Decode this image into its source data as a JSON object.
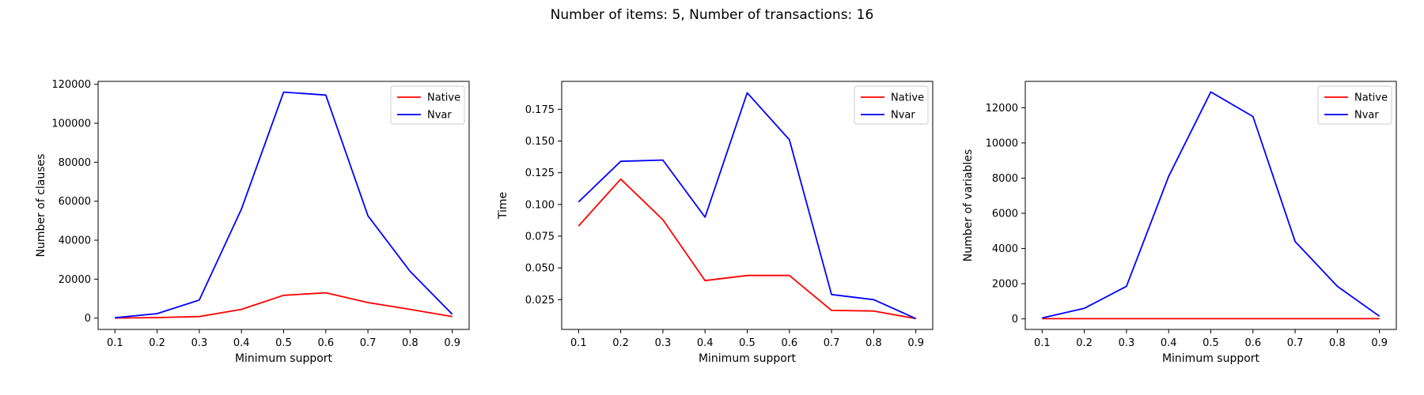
{
  "figure": {
    "suptitle": "Number of items: 5, Number of transactions: 16"
  },
  "chart_data": [
    {
      "type": "line",
      "xlabel": "Minimum support",
      "ylabel": "Number of clauses",
      "x": [
        0.1,
        0.2,
        0.3,
        0.4,
        0.5,
        0.6,
        0.7,
        0.8,
        0.9
      ],
      "xticks": [
        "0.1",
        "0.2",
        "0.3",
        "0.4",
        "0.5",
        "0.6",
        "0.7",
        "0.8",
        "0.9"
      ],
      "xlim": [
        0.06,
        0.94
      ],
      "ylim": [
        -5800,
        121500
      ],
      "yticks": [
        0,
        20000,
        40000,
        60000,
        80000,
        100000,
        120000
      ],
      "ytick_labels": [
        "0",
        "20000",
        "40000",
        "60000",
        "80000",
        "100000",
        "120000"
      ],
      "legend": "top-right",
      "grid": false,
      "series": [
        {
          "name": "Native",
          "color": "#ff0000",
          "values": [
            50,
            300,
            800,
            4500,
            11700,
            13000,
            8000,
            4500,
            800
          ]
        },
        {
          "name": "Nvar",
          "color": "#0000ff",
          "values": [
            200,
            2300,
            9300,
            56000,
            116000,
            114500,
            52500,
            24000,
            2000
          ]
        }
      ]
    },
    {
      "type": "line",
      "xlabel": "Minimum support",
      "ylabel": "Time",
      "x": [
        0.1,
        0.2,
        0.3,
        0.4,
        0.5,
        0.6,
        0.7,
        0.8,
        0.9
      ],
      "xticks": [
        "0.1",
        "0.2",
        "0.3",
        "0.4",
        "0.5",
        "0.6",
        "0.7",
        "0.8",
        "0.9"
      ],
      "xlim": [
        0.06,
        0.94
      ],
      "ylim": [
        0.0015,
        0.197
      ],
      "yticks": [
        0.025,
        0.05,
        0.075,
        0.1,
        0.125,
        0.15,
        0.175
      ],
      "ytick_labels": [
        "0.025",
        "0.050",
        "0.075",
        "0.100",
        "0.125",
        "0.150",
        "0.175"
      ],
      "legend": "top-right",
      "grid": false,
      "series": [
        {
          "name": "Native",
          "color": "#ff0000",
          "values": [
            0.083,
            0.12,
            0.088,
            0.04,
            0.044,
            0.044,
            0.0165,
            0.016,
            0.01
          ]
        },
        {
          "name": "Nvar",
          "color": "#0000ff",
          "values": [
            0.102,
            0.134,
            0.135,
            0.09,
            0.188,
            0.151,
            0.029,
            0.025,
            0.01
          ]
        }
      ]
    },
    {
      "type": "line",
      "xlabel": "Minimum support",
      "ylabel": "Number of variables",
      "x": [
        0.1,
        0.2,
        0.3,
        0.4,
        0.5,
        0.6,
        0.7,
        0.8,
        0.9
      ],
      "xticks": [
        "0.1",
        "0.2",
        "0.3",
        "0.4",
        "0.5",
        "0.6",
        "0.7",
        "0.8",
        "0.9"
      ],
      "xlim": [
        0.06,
        0.94
      ],
      "ylim": [
        -600,
        13500
      ],
      "yticks": [
        0,
        2000,
        4000,
        6000,
        8000,
        10000,
        12000
      ],
      "ytick_labels": [
        "0",
        "2000",
        "4000",
        "6000",
        "8000",
        "10000",
        "12000"
      ],
      "legend": "top-right",
      "grid": false,
      "series": [
        {
          "name": "Native",
          "color": "#ff0000",
          "values": [
            10,
            10,
            10,
            10,
            10,
            10,
            10,
            10,
            10
          ]
        },
        {
          "name": "Nvar",
          "color": "#0000ff",
          "values": [
            50,
            600,
            1850,
            8100,
            12900,
            11500,
            4400,
            1850,
            150
          ]
        }
      ]
    }
  ]
}
